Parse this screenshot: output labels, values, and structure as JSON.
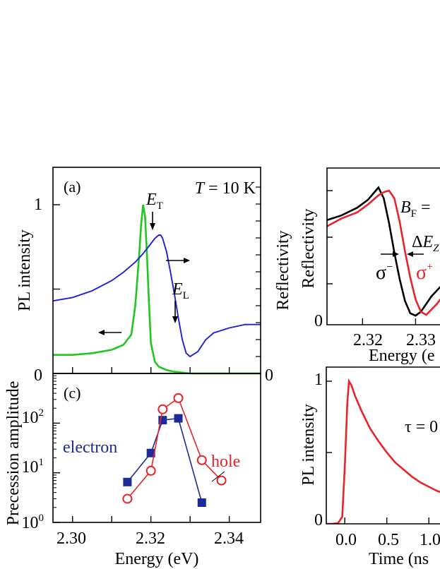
{
  "chart_data": [
    {
      "id": "a",
      "type": "line",
      "panel_label": "(a)",
      "annotation": "T = 10 K",
      "ylabel_left": "PL intensity",
      "ylabel_right": "Reflectivity",
      "left_ticks": [
        "0",
        "1"
      ],
      "right_ticks": [
        "0"
      ],
      "xlim": [
        2.295,
        2.348
      ],
      "ylim": [
        0,
        1.2
      ],
      "markers": [
        "E_T",
        "E_L"
      ],
      "series": [
        {
          "color": "#1fc81f",
          "x": [
            2.295,
            2.3,
            2.305,
            2.31,
            2.313,
            2.315,
            2.316,
            2.317,
            2.3175,
            2.318,
            2.3185,
            2.319,
            2.3195,
            2.32,
            2.321,
            2.322,
            2.324,
            2.326,
            2.33,
            2.34,
            2.348
          ],
          "y": [
            0.11,
            0.11,
            0.12,
            0.14,
            0.17,
            0.23,
            0.4,
            0.7,
            0.88,
            1.0,
            0.93,
            0.7,
            0.42,
            0.18,
            0.07,
            0.04,
            0.02,
            0.01,
            0.0,
            0.0,
            0.0
          ]
        },
        {
          "color": "#1f1fdc",
          "x": [
            2.295,
            2.3,
            2.305,
            2.31,
            2.313,
            2.316,
            2.318,
            2.32,
            2.321,
            2.322,
            2.3225,
            2.323,
            2.324,
            2.325,
            2.326,
            2.327,
            2.328,
            2.329,
            2.33,
            2.332,
            2.334,
            2.336,
            2.34,
            2.344,
            2.348
          ],
          "y": [
            0.43,
            0.45,
            0.49,
            0.55,
            0.6,
            0.66,
            0.71,
            0.77,
            0.8,
            0.82,
            0.82,
            0.8,
            0.72,
            0.6,
            0.47,
            0.33,
            0.2,
            0.12,
            0.1,
            0.13,
            0.2,
            0.24,
            0.27,
            0.29,
            0.29
          ]
        }
      ]
    },
    {
      "id": "c",
      "type": "scatter",
      "panel_label": "(c)",
      "xlabel": "Energy (eV)",
      "ylabel": "Precession amplitude",
      "xticks": [
        "2.30",
        "2.32",
        "2.34"
      ],
      "ytick_exponents": [
        "0",
        "1",
        "2"
      ],
      "xlim": [
        2.295,
        2.348
      ],
      "ylim_log": [
        1,
        1000
      ],
      "series": [
        {
          "name": "electron",
          "color": "#1f2a9a",
          "marker": "square",
          "x": [
            2.314,
            2.32,
            2.323,
            2.327,
            2.333
          ],
          "y": [
            6.5,
            25,
            115,
            125,
            2.5
          ]
        },
        {
          "name": "hole",
          "color": "#e8242a",
          "marker": "circle-open",
          "x": [
            2.314,
            2.32,
            2.323,
            2.327,
            2.333,
            2.338
          ],
          "y": [
            3,
            11,
            190,
            320,
            18,
            7
          ]
        }
      ]
    },
    {
      "id": "b",
      "type": "line",
      "ylabel": "Reflectivity",
      "xlabel": "Energy (e",
      "xticks": [
        "2.32",
        "2.33"
      ],
      "ytick": "0",
      "xlim": [
        2.3133,
        2.3366
      ],
      "annotation_field": "B_F =",
      "annotation_split": "ΔE_Z",
      "sigma_minus": "σ⁻",
      "sigma_plus": "σ⁺",
      "series": [
        {
          "color": "#000000",
          "x": [
            2.3133,
            2.316,
            2.319,
            2.321,
            2.3225,
            2.323,
            2.324,
            2.325,
            2.326,
            2.327,
            2.328,
            2.329,
            2.33,
            2.331,
            2.333,
            2.3366
          ],
          "y": [
            0.66,
            0.69,
            0.74,
            0.79,
            0.85,
            0.87,
            0.8,
            0.64,
            0.45,
            0.28,
            0.14,
            0.06,
            0.045,
            0.07,
            0.17,
            0.3
          ]
        },
        {
          "color": "#e8242a",
          "x": [
            2.3133,
            2.316,
            2.319,
            2.321,
            2.323,
            2.324,
            2.325,
            2.326,
            2.327,
            2.328,
            2.329,
            2.33,
            2.331,
            2.332,
            2.334,
            2.3366
          ],
          "y": [
            0.62,
            0.67,
            0.71,
            0.76,
            0.82,
            0.84,
            0.85,
            0.8,
            0.65,
            0.46,
            0.29,
            0.15,
            0.07,
            0.05,
            0.12,
            0.24
          ]
        }
      ]
    },
    {
      "id": "d",
      "type": "line",
      "ylabel": "PL intensity",
      "xlabel": "Time (ns",
      "xticks": [
        "0.0",
        "0.5",
        "1.0"
      ],
      "yticks": [
        "0",
        "1"
      ],
      "annotation": "τ = 0",
      "xlim": [
        -0.22,
        1.2
      ],
      "series": [
        {
          "color": "#e8242a",
          "x": [
            -0.22,
            -0.15,
            -0.08,
            -0.03,
            0.0,
            0.03,
            0.05,
            0.08,
            0.12,
            0.2,
            0.3,
            0.4,
            0.5,
            0.6,
            0.7,
            0.8,
            0.9,
            1.0,
            1.1,
            1.2
          ],
          "y": [
            0.0,
            0.0,
            0.005,
            0.05,
            0.4,
            0.85,
            1.0,
            0.97,
            0.9,
            0.79,
            0.67,
            0.58,
            0.5,
            0.43,
            0.38,
            0.33,
            0.29,
            0.26,
            0.23,
            0.21
          ]
        }
      ]
    }
  ]
}
